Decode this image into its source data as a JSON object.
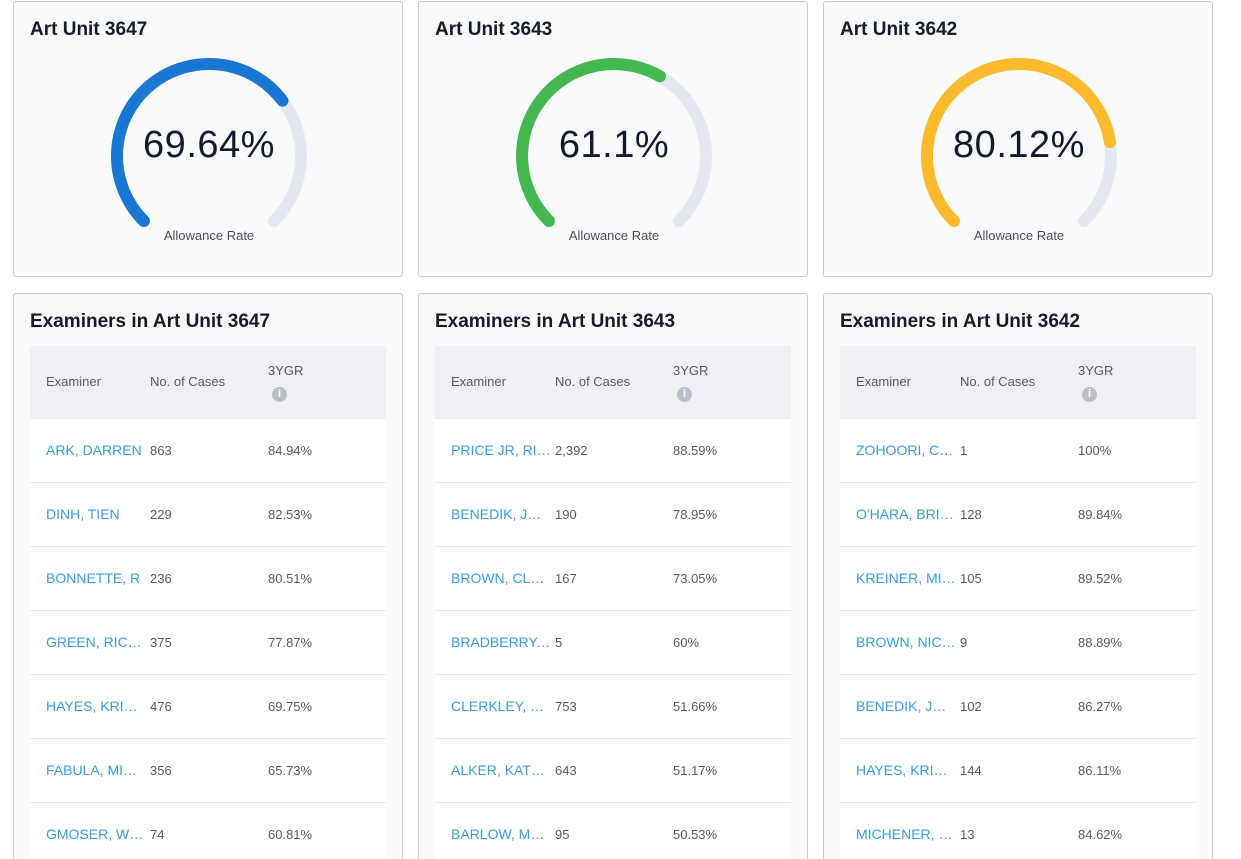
{
  "gauges": [
    {
      "title": "Art Unit 3647",
      "value_text": "69.64%",
      "value": 69.64,
      "label": "Allowance Rate",
      "color": "#1976d2"
    },
    {
      "title": "Art Unit 3643",
      "value_text": "61.1%",
      "value": 61.1,
      "label": "Allowance Rate",
      "color": "#43b84e"
    },
    {
      "title": "Art Unit 3642",
      "value_text": "80.12%",
      "value": 80.12,
      "label": "Allowance Rate",
      "color": "#fbba2c"
    }
  ],
  "track_color": "#e3e7ef",
  "tables": [
    {
      "title": "Examiners in Art Unit 3647",
      "headers": {
        "examiner": "Examiner",
        "cases": "No. of Cases",
        "ygr": "3YGR"
      },
      "rows": [
        {
          "name": "ARK, DARREN",
          "cases": "863",
          "ygr": "84.94%"
        },
        {
          "name": "DINH, TIEN",
          "cases": "229",
          "ygr": "82.53%"
        },
        {
          "name": "BONNETTE, R",
          "cases": "236",
          "ygr": "80.51%"
        },
        {
          "name": "GREEN, RICHARD",
          "cases": "375",
          "ygr": "77.87%"
        },
        {
          "name": "HAYES, KRISTEN",
          "cases": "476",
          "ygr": "69.75%"
        },
        {
          "name": "FABULA, MICHAEL",
          "cases": "356",
          "ygr": "65.73%"
        },
        {
          "name": "GMOSER, WILLIAM",
          "cases": "74",
          "ygr": "60.81%"
        }
      ]
    },
    {
      "title": "Examiners in Art Unit 3643",
      "headers": {
        "examiner": "Examiner",
        "cases": "No. of Cases",
        "ygr": "3YGR"
      },
      "rows": [
        {
          "name": "PRICE JR, RICHARD",
          "cases": "2,392",
          "ygr": "88.59%"
        },
        {
          "name": "BENEDIK, JUSTIN",
          "cases": "190",
          "ygr": "78.95%"
        },
        {
          "name": "BROWN, CLAUDE",
          "cases": "167",
          "ygr": "73.05%"
        },
        {
          "name": "BRADBERRY, TANYA",
          "cases": "5",
          "ygr": "60%"
        },
        {
          "name": "CLERKLEY, DANIELLE",
          "cases": "753",
          "ygr": "51.66%"
        },
        {
          "name": "ALKER, KATHERINE",
          "cases": "643",
          "ygr": "51.17%"
        },
        {
          "name": "BARLOW, MONICA",
          "cases": "95",
          "ygr": "50.53%"
        }
      ]
    },
    {
      "title": "Examiners in Art Unit 3642",
      "headers": {
        "examiner": "Examiner",
        "cases": "No. of Cases",
        "ygr": "3YGR"
      },
      "rows": [
        {
          "name": "ZOHOORI, COLIN",
          "cases": "1",
          "ygr": "100%"
        },
        {
          "name": "O'HARA, BRIAN",
          "cases": "128",
          "ygr": "89.84%"
        },
        {
          "name": "KREINER, MICHAEL",
          "cases": "105",
          "ygr": "89.52%"
        },
        {
          "name": "BROWN, NICHOLAS",
          "cases": "9",
          "ygr": "88.89%"
        },
        {
          "name": "BENEDIK, JUSTIN",
          "cases": "102",
          "ygr": "86.27%"
        },
        {
          "name": "HAYES, KRISTEN",
          "cases": "144",
          "ygr": "86.11%"
        },
        {
          "name": "MICHENER, BLAKE",
          "cases": "13",
          "ygr": "84.62%"
        }
      ]
    }
  ]
}
